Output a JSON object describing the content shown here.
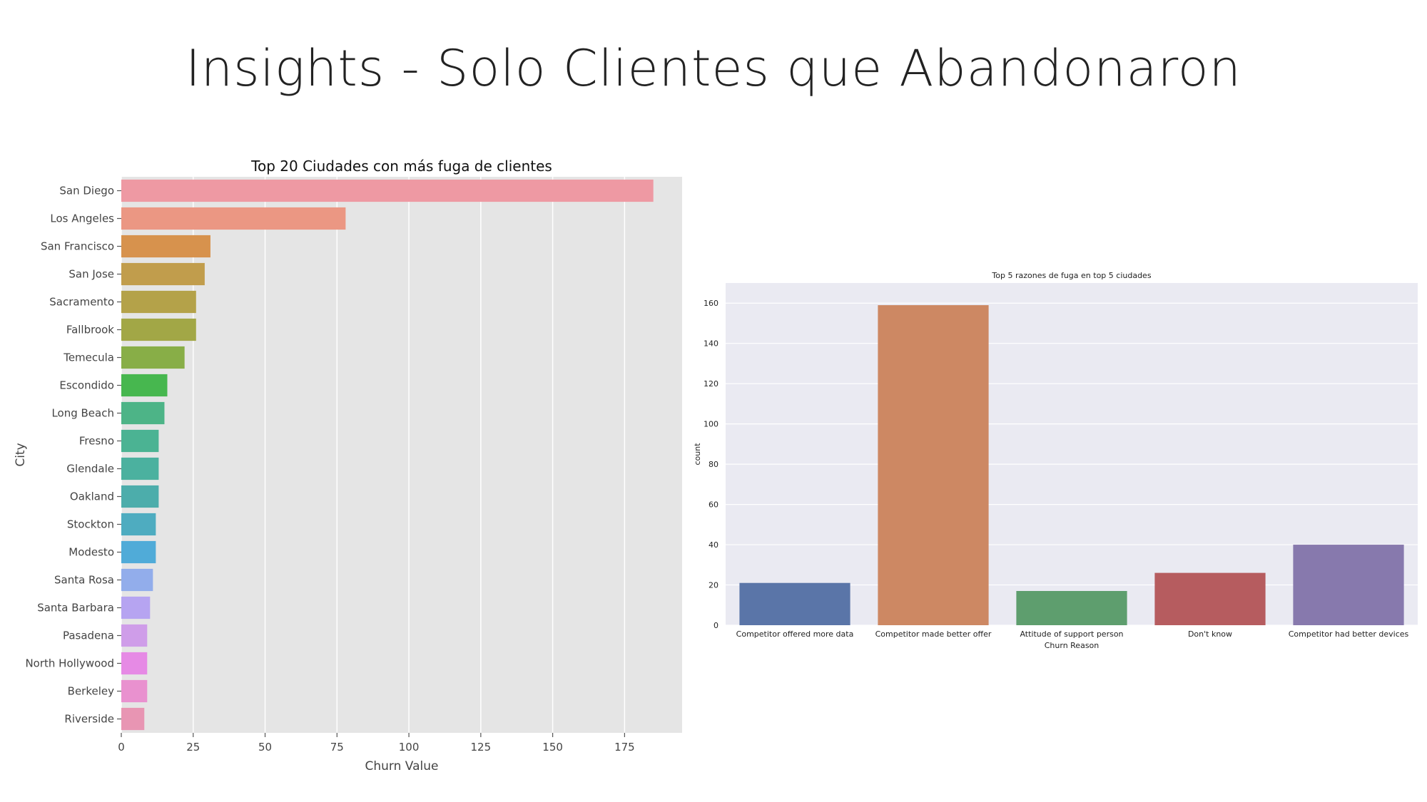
{
  "slide": {
    "title": "Insights - Solo Clientes que Abandonaron"
  },
  "chart_data": [
    {
      "type": "bar",
      "orientation": "horizontal",
      "title": "Top 20 Ciudades con más fuga de clientes",
      "xlabel": "Churn Value",
      "ylabel": "City",
      "xlim": [
        0,
        195
      ],
      "xticks": [
        0,
        25,
        50,
        75,
        100,
        125,
        150,
        175
      ],
      "grid": true,
      "categories": [
        "San Diego",
        "Los Angeles",
        "San Francisco",
        "San Jose",
        "Sacramento",
        "Fallbrook",
        "Temecula",
        "Escondido",
        "Long Beach",
        "Fresno",
        "Glendale",
        "Oakland",
        "Stockton",
        "Modesto",
        "Santa Rosa",
        "Santa Barbara",
        "Pasadena",
        "North Hollywood",
        "Berkeley",
        "Riverside"
      ],
      "values": [
        185,
        78,
        31,
        29,
        26,
        26,
        22,
        16,
        15,
        13,
        13,
        13,
        12,
        12,
        11,
        10,
        9,
        9,
        9,
        8
      ],
      "colors": [
        "#ee99a3",
        "#eb9783",
        "#d7924d",
        "#c19d4c",
        "#b4a249",
        "#a2a746",
        "#88ae47",
        "#47b74f",
        "#4db487",
        "#4bb393",
        "#4bb19f",
        "#4cadab",
        "#4eacc0",
        "#50abd8",
        "#92adeb",
        "#b6a4f1",
        "#cf9de9",
        "#e68ae5",
        "#e991cf",
        "#e895b3"
      ]
    },
    {
      "type": "bar",
      "title": "Top 5 razones de fuga en top 5 ciudades",
      "xlabel": "Churn Reason",
      "ylabel": "count",
      "ylim": [
        0,
        170
      ],
      "yticks": [
        0,
        20,
        40,
        60,
        80,
        100,
        120,
        140,
        160
      ],
      "grid": true,
      "categories": [
        "Competitor offered more data",
        "Competitor made better offer",
        "Attitude of support person",
        "Don't know",
        "Competitor had better devices"
      ],
      "values": [
        21,
        159,
        17,
        26,
        40
      ],
      "colors": [
        "#5a75a8",
        "#cd8863",
        "#5e9e6e",
        "#b65c5f",
        "#8779ad"
      ]
    }
  ]
}
